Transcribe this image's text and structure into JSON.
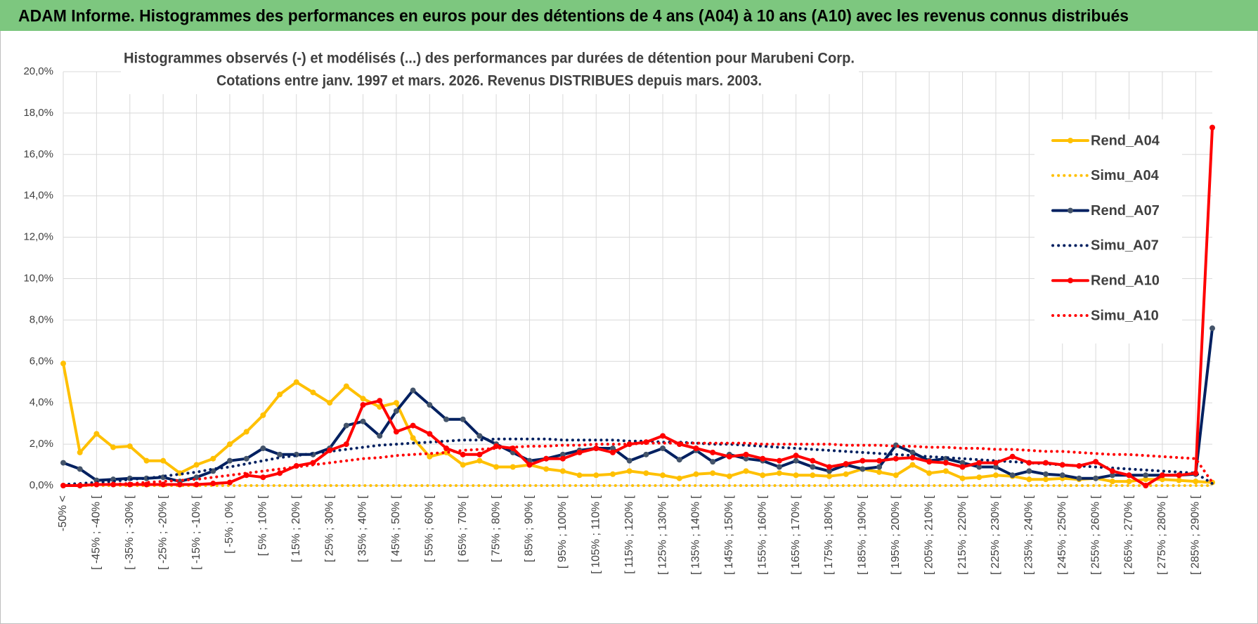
{
  "header": "ADAM Informe. Histogrammes des performances en euros pour des détentions de 4 ans (A04) à 10 ans (A10) avec les revenus connus distribués",
  "chart_data": {
    "type": "line",
    "title": "Histogrammes observés (-) et modélisés (...) des performances par durées de détention pour Marubeni Corp.",
    "subtitle": "Cotations entre janv. 1997 et mars. 2026. Revenus DISTRIBUES depuis mars. 2003.",
    "categories": [
      "-50% <",
      null,
      "[ -45% ; -40% [",
      null,
      "[ -35% ; -30% [",
      null,
      "[ -25% ; -20% [",
      null,
      "[ -15% ; -10% [",
      null,
      "[ -5% ; 0% [",
      null,
      "[ 5% ; 10% [",
      null,
      "[ 15% ; 20% [",
      null,
      "[ 25% ; 30% [",
      null,
      "[ 35% ; 40% [",
      null,
      "[ 45% ; 50% [",
      null,
      "[ 55% ; 60% [",
      null,
      "[ 65% ; 70% [",
      null,
      "[ 75% ; 80% [",
      null,
      "[ 85% ; 90% [",
      null,
      "[ 95% ; 100% [",
      null,
      "[ 105% ; 110% [",
      null,
      "[ 115% ; 120% [",
      null,
      "[ 125% ; 130% [",
      null,
      "[ 135% ; 140% [",
      null,
      "[ 145% ; 150% [",
      null,
      "[ 155% ; 160% [",
      null,
      "[ 165% ; 170% [",
      null,
      "[ 175% ; 180% [",
      null,
      "[ 185% ; 190% [",
      null,
      "[ 195% ; 200% [",
      null,
      "[ 205% ; 210% [",
      null,
      "[ 215% ; 220% [",
      null,
      "[ 225% ; 230% [",
      null,
      "[ 235% ; 240% [",
      null,
      "[ 245% ; 250% [",
      null,
      "[ 255% ; 260% [",
      null,
      "[ 265% ; 270% [",
      null,
      "[ 275% ; 280% [",
      null,
      "[ 285% ; 290% [",
      null
    ],
    "ylim": [
      0,
      20
    ],
    "yticks": [
      {
        "value": 0,
        "label": "0,0%"
      },
      {
        "value": 2,
        "label": "2,0%"
      },
      {
        "value": 4,
        "label": "4,0%"
      },
      {
        "value": 6,
        "label": "6,0%"
      },
      {
        "value": 8,
        "label": "8,0%"
      },
      {
        "value": 10,
        "label": "10,0%"
      },
      {
        "value": 12,
        "label": "12,0%"
      },
      {
        "value": 14,
        "label": "14,0%"
      },
      {
        "value": 16,
        "label": "16,0%"
      },
      {
        "value": 18,
        "label": "18,0%"
      },
      {
        "value": 20,
        "label": "20,0%"
      }
    ],
    "grid": true,
    "legend": "right",
    "series": [
      {
        "name": "Rend_A04",
        "color": "#FFC000",
        "style": "solid",
        "marker": true,
        "values": [
          5.9,
          1.6,
          2.5,
          1.85,
          1.9,
          1.2,
          1.2,
          0.6,
          1.0,
          1.3,
          2.0,
          2.6,
          3.4,
          4.4,
          5.0,
          4.5,
          4.0,
          4.8,
          4.2,
          3.8,
          4.0,
          2.3,
          1.4,
          1.6,
          1.0,
          1.2,
          0.9,
          0.9,
          1.0,
          0.8,
          0.7,
          0.5,
          0.5,
          0.55,
          0.7,
          0.6,
          0.5,
          0.35,
          0.55,
          0.6,
          0.45,
          0.7,
          0.5,
          0.6,
          0.5,
          0.5,
          0.45,
          0.55,
          0.8,
          0.65,
          0.5,
          1.0,
          0.6,
          0.7,
          0.35,
          0.4,
          0.5,
          0.45,
          0.3,
          0.3,
          0.35,
          0.3,
          0.35,
          0.2,
          0.2,
          0.3,
          0.3,
          0.25,
          0.2,
          0.15
        ]
      },
      {
        "name": "Simu_A04",
        "color": "#FFC000",
        "style": "dotted",
        "marker": false,
        "values": [
          0,
          0,
          0,
          0,
          0,
          0,
          0,
          0,
          0,
          0,
          0,
          0,
          0,
          0,
          0,
          0,
          0,
          0,
          0,
          0,
          0,
          0,
          0,
          0,
          0,
          0,
          0,
          0,
          0,
          0,
          0,
          0,
          0,
          0,
          0,
          0,
          0,
          0,
          0,
          0,
          0,
          0,
          0,
          0,
          0,
          0,
          0,
          0,
          0,
          0,
          0,
          0,
          0,
          0,
          0,
          0,
          0,
          0,
          0,
          0,
          0,
          0,
          0,
          0,
          0,
          0,
          0,
          0,
          0,
          0
        ]
      },
      {
        "name": "Rend_A07",
        "color": "#002060",
        "style": "solid",
        "marker": true,
        "values": [
          1.1,
          0.8,
          0.25,
          0.3,
          0.35,
          0.35,
          0.4,
          0.2,
          0.4,
          0.7,
          1.2,
          1.3,
          1.8,
          1.5,
          1.5,
          1.5,
          1.8,
          2.9,
          3.1,
          2.4,
          3.6,
          4.6,
          3.9,
          3.2,
          3.2,
          2.4,
          2.0,
          1.6,
          1.2,
          1.3,
          1.5,
          1.7,
          1.8,
          1.8,
          1.2,
          1.5,
          1.8,
          1.25,
          1.7,
          1.15,
          1.5,
          1.3,
          1.2,
          0.9,
          1.2,
          0.9,
          0.7,
          1.0,
          0.8,
          0.9,
          1.95,
          1.6,
          1.2,
          1.3,
          1.1,
          0.9,
          0.9,
          0.5,
          0.7,
          0.55,
          0.5,
          0.35,
          0.35,
          0.5,
          0.5,
          0.5,
          0.5,
          0.5,
          0.55,
          7.6
        ]
      },
      {
        "name": "Simu_A07",
        "color": "#002060",
        "style": "dotted",
        "marker": false,
        "values": [
          0.05,
          0.1,
          0.15,
          0.2,
          0.3,
          0.35,
          0.45,
          0.55,
          0.65,
          0.8,
          0.9,
          1.05,
          1.2,
          1.35,
          1.45,
          1.55,
          1.65,
          1.75,
          1.85,
          1.95,
          2.0,
          2.05,
          2.1,
          2.15,
          2.2,
          2.2,
          2.25,
          2.25,
          2.25,
          2.25,
          2.2,
          2.2,
          2.2,
          2.2,
          2.15,
          2.15,
          2.1,
          2.1,
          2.05,
          2.0,
          2.0,
          1.95,
          1.9,
          1.85,
          1.8,
          1.75,
          1.7,
          1.65,
          1.6,
          1.55,
          1.5,
          1.45,
          1.4,
          1.35,
          1.3,
          1.25,
          1.2,
          1.15,
          1.1,
          1.05,
          1.0,
          0.95,
          0.9,
          0.85,
          0.8,
          0.75,
          0.7,
          0.65,
          0.6,
          0.1
        ]
      },
      {
        "name": "Rend_A10",
        "color": "#FF0000",
        "style": "solid",
        "marker": true,
        "values": [
          0,
          0,
          0.05,
          0.05,
          0.05,
          0.05,
          0.05,
          0.05,
          0.05,
          0.1,
          0.15,
          0.5,
          0.4,
          0.6,
          0.95,
          1.1,
          1.7,
          2.0,
          3.9,
          4.1,
          2.6,
          2.9,
          2.5,
          1.8,
          1.5,
          1.5,
          1.9,
          1.8,
          1.0,
          1.3,
          1.3,
          1.6,
          1.8,
          1.6,
          2.0,
          2.1,
          2.4,
          2.0,
          1.8,
          1.6,
          1.4,
          1.5,
          1.3,
          1.2,
          1.45,
          1.2,
          0.9,
          1.05,
          1.2,
          1.2,
          1.3,
          1.35,
          1.15,
          1.1,
          0.9,
          1.1,
          1.1,
          1.4,
          1.1,
          1.1,
          1.0,
          0.95,
          1.15,
          0.7,
          0.5,
          0.0,
          0.5,
          0.5,
          0.6,
          17.3
        ]
      },
      {
        "name": "Simu_A10",
        "color": "#FF0000",
        "style": "dotted",
        "marker": false,
        "values": [
          0,
          0.02,
          0.05,
          0.07,
          0.1,
          0.15,
          0.2,
          0.25,
          0.3,
          0.4,
          0.5,
          0.6,
          0.7,
          0.8,
          0.9,
          1.0,
          1.1,
          1.2,
          1.3,
          1.35,
          1.45,
          1.5,
          1.55,
          1.6,
          1.7,
          1.75,
          1.8,
          1.85,
          1.9,
          1.9,
          1.95,
          1.95,
          2.0,
          2.0,
          2.0,
          2.05,
          2.05,
          2.05,
          2.05,
          2.05,
          2.05,
          2.05,
          2.0,
          2.0,
          2.0,
          2.0,
          2.0,
          1.95,
          1.95,
          1.95,
          1.9,
          1.9,
          1.85,
          1.85,
          1.8,
          1.8,
          1.75,
          1.75,
          1.7,
          1.65,
          1.65,
          1.6,
          1.55,
          1.5,
          1.5,
          1.45,
          1.4,
          1.35,
          1.3,
          0.15
        ]
      }
    ]
  }
}
